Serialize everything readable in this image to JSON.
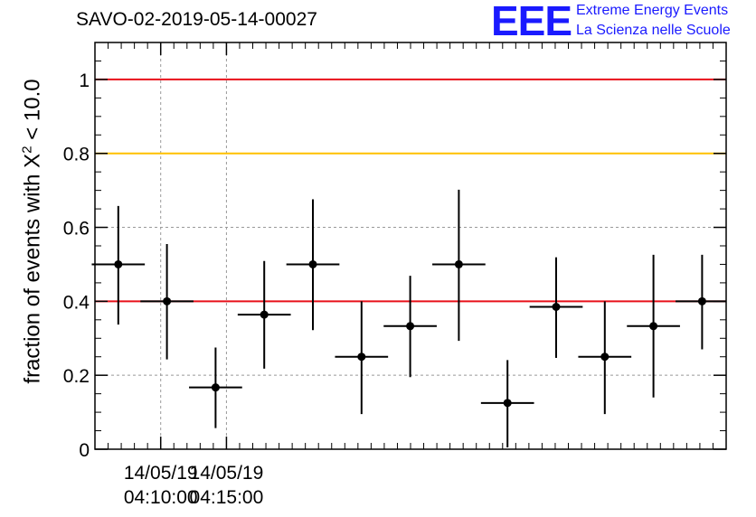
{
  "title": "SAVO-02-2019-05-14-00027",
  "logo": {
    "mark": "EEE",
    "line1": "Extreme Energy Events",
    "line2": "La Scienza nelle Scuole"
  },
  "colors": {
    "red_line": "#e8101a",
    "orange_line": "#ffc000",
    "points": "#000000",
    "logo": "#1a1aff"
  },
  "chart_data": {
    "type": "scatter",
    "title": "SAVO-02-2019-05-14-00027",
    "ylabel": {
      "prefix": "fraction of events with X",
      "superscript": "2",
      "suffix": " < 10.0"
    },
    "ylim": [
      0,
      1.1
    ],
    "yticks": [
      {
        "value": 0,
        "label": "0"
      },
      {
        "value": 0.2,
        "label": "0.2"
      },
      {
        "value": 0.4,
        "label": "0.4"
      },
      {
        "value": 0.6,
        "label": "0.6"
      },
      {
        "value": 0.8,
        "label": "0.8"
      },
      {
        "value": 1,
        "label": "1"
      }
    ],
    "xlim_minutes": [
      4.05,
      4.53
    ],
    "xticks": [
      {
        "minute": 4.1,
        "date": "14/05/19",
        "time": "04:10:00"
      },
      {
        "minute": 4.15,
        "date": "14/05/19",
        "time": "04:15:00"
      }
    ],
    "grid": true,
    "reference_lines": [
      {
        "y": 1.0,
        "color": "#e8101a"
      },
      {
        "y": 0.8,
        "color": "#ffc000"
      },
      {
        "y": 0.4,
        "color": "#e8101a"
      }
    ],
    "points": [
      {
        "x": 0.5,
        "y": 0.5,
        "err_low": 0.163,
        "err_high": 0.158
      },
      {
        "x": 1.5,
        "y": 0.4,
        "err_low": 0.157,
        "err_high": 0.155
      },
      {
        "x": 2.5,
        "y": 0.167,
        "err_low": 0.11,
        "err_high": 0.108
      },
      {
        "x": 3.5,
        "y": 0.364,
        "err_low": 0.146,
        "err_high": 0.145
      },
      {
        "x": 4.5,
        "y": 0.5,
        "err_low": 0.178,
        "err_high": 0.176
      },
      {
        "x": 5.5,
        "y": 0.25,
        "err_low": 0.155,
        "err_high": 0.15
      },
      {
        "x": 6.5,
        "y": 0.333,
        "err_low": 0.138,
        "err_high": 0.136
      },
      {
        "x": 7.5,
        "y": 0.5,
        "err_low": 0.207,
        "err_high": 0.202
      },
      {
        "x": 8.5,
        "y": 0.125,
        "err_low": 0.12,
        "err_high": 0.116
      },
      {
        "x": 9.5,
        "y": 0.385,
        "err_low": 0.138,
        "err_high": 0.134
      },
      {
        "x": 10.5,
        "y": 0.25,
        "err_low": 0.155,
        "err_high": 0.15
      },
      {
        "x": 11.5,
        "y": 0.333,
        "err_low": 0.193,
        "err_high": 0.193
      },
      {
        "x": 12.5,
        "y": 0.4,
        "err_low": 0.13,
        "err_high": 0.126
      }
    ],
    "bin_halfwidth": 0.6
  }
}
